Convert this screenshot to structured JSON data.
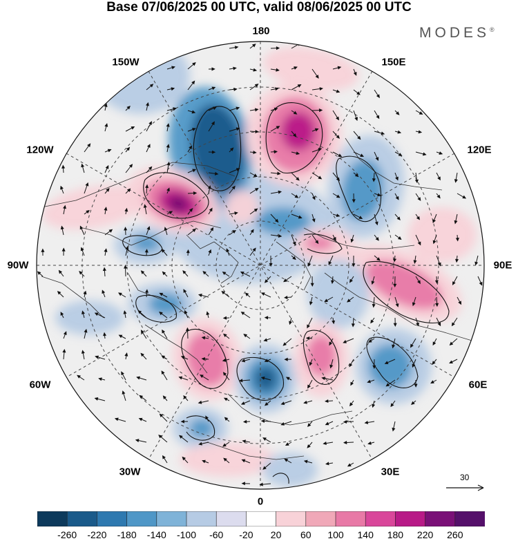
{
  "title": "Base 07/06/2025 00 UTC, valid 08/06/2025 00 UTC",
  "brand": {
    "name": "MODES",
    "mark": "®"
  },
  "longitude_labels": {
    "top": "180",
    "bottom": "0",
    "left": "90W",
    "right": "90E",
    "upper_left_1": "150W",
    "upper_left_2": "120W",
    "upper_right_1": "150E",
    "upper_right_2": "120E",
    "lower_left_1": "60W",
    "lower_left_2": "30W",
    "lower_right_1": "60E",
    "lower_right_2": "30E"
  },
  "reference_vector": {
    "label": "30"
  },
  "colorbar": {
    "levels": [
      "-260",
      "-220",
      "-180",
      "-140",
      "-100",
      "-60",
      "-20",
      "20",
      "60",
      "100",
      "140",
      "180",
      "220",
      "260"
    ],
    "colors": [
      "#0d3a5c",
      "#1a5a8a",
      "#2e79b0",
      "#4f97c7",
      "#7fb3d8",
      "#b6cbe4",
      "#dcdcee",
      "#ffffff",
      "#f8d2d8",
      "#f0a8b8",
      "#e879a6",
      "#d9469a",
      "#b81a87",
      "#7a1077",
      "#55106a"
    ]
  },
  "anomaly_colors": {
    "strong_negative": "#1a5a8a",
    "moderate_negative": "#4f97c7",
    "weak_negative": "#b6cbe4",
    "weak_positive": "#f8d2d8",
    "moderate_positive": "#e879a6",
    "strong_positive": "#b81a87",
    "extreme_positive": "#6b106e"
  }
}
